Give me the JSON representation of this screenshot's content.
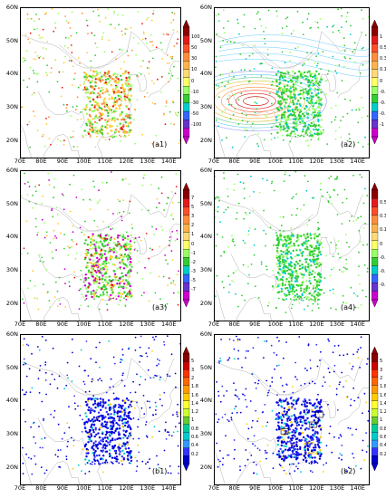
{
  "panels": [
    {
      "id": "a1",
      "label": "(a1)",
      "colorbar": {
        "labels": [
          "100",
          "50",
          "30",
          "10",
          "0",
          "-10",
          "-30",
          "-50",
          "-100"
        ],
        "colors": [
          "#8b0000",
          "#e31a1c",
          "#fc4e2a",
          "#fd8d3c",
          "#feb24c",
          "#fed976",
          "#ffff66",
          "#99ff66",
          "#33cc33",
          "#00cccc",
          "#3366ff",
          "#6633cc",
          "#cc00cc"
        ]
      },
      "points": [
        [
          "#e31a1c",
          0.5
        ],
        [
          "#fd8d3c",
          0.9
        ],
        [
          "#ffcc33",
          1.4
        ],
        [
          "#99ff66",
          1.3
        ],
        [
          "#33cc33",
          0.8
        ]
      ],
      "contours": false
    },
    {
      "id": "a2",
      "label": "(a2)",
      "colorbar": {
        "labels": [
          "1",
          "0.5",
          "0.3",
          "0.1",
          "0",
          "-0.1",
          "-0.3",
          "-0.5",
          "-1"
        ],
        "colors": [
          "#8b0000",
          "#e31a1c",
          "#fc4e2a",
          "#fd8d3c",
          "#feb24c",
          "#fed976",
          "#ffff66",
          "#99ff66",
          "#33cc33",
          "#00cccc",
          "#3366ff",
          "#6633cc",
          "#cc00cc"
        ]
      },
      "points": [
        [
          "#33cc33",
          2.0
        ],
        [
          "#99ff66",
          1.0
        ],
        [
          "#00cccc",
          0.6
        ]
      ],
      "contours": true
    },
    {
      "id": "a3",
      "label": "(a3)",
      "colorbar": {
        "labels": [
          "7",
          "5",
          "3",
          "2",
          "1",
          "0",
          "-1",
          "-2",
          "-3",
          "-5",
          "-7"
        ],
        "colors": [
          "#8b0000",
          "#e31a1c",
          "#fc4e2a",
          "#fd8d3c",
          "#feb24c",
          "#fed976",
          "#ffff66",
          "#99ff66",
          "#33cc33",
          "#00cccc",
          "#3366ff",
          "#6633cc",
          "#cc00cc"
        ]
      },
      "points": [
        [
          "#cc00cc",
          0.8
        ],
        [
          "#33cc33",
          1.5
        ],
        [
          "#99ff66",
          1.0
        ],
        [
          "#ffcc33",
          0.6
        ],
        [
          "#e31a1c",
          0.3
        ]
      ],
      "contours": false
    },
    {
      "id": "a4",
      "label": "(a4)",
      "colorbar": {
        "labels": [
          "0.5",
          "0.3",
          "0.1",
          "0",
          "-0.1",
          "-0.3",
          "-0.5"
        ],
        "colors": [
          "#8b0000",
          "#e31a1c",
          "#fc4e2a",
          "#fd8d3c",
          "#feb24c",
          "#fed976",
          "#ffff66",
          "#99ff66",
          "#33cc33",
          "#00cccc",
          "#3366ff",
          "#6633cc",
          "#cc00cc"
        ]
      },
      "points": [
        [
          "#33cc33",
          2.0
        ],
        [
          "#99ff66",
          0.7
        ],
        [
          "#00cccc",
          0.5
        ]
      ],
      "contours": false
    },
    {
      "id": "b1",
      "label": "(b1)",
      "colorbar": {
        "labels": [
          "5",
          "3",
          "2",
          "1.8",
          "1.6",
          "1.4",
          "1.2",
          "1",
          "0.8",
          "0.6",
          "0.4",
          "0.2"
        ],
        "colors": [
          "#8b0000",
          "#cc0000",
          "#ff3300",
          "#ff6600",
          "#ff9900",
          "#ffcc00",
          "#ffff33",
          "#ccff33",
          "#66cc33",
          "#00cc99",
          "#00cccc",
          "#3399ff",
          "#3333ff",
          "#0000cc"
        ]
      },
      "points": [
        [
          "#0000dd",
          2.6
        ],
        [
          "#3333ff",
          0.8
        ],
        [
          "#00cccc",
          0.3
        ],
        [
          "#ffcc00",
          0.2
        ]
      ],
      "contours": false
    },
    {
      "id": "b2",
      "label": "(b2)",
      "colorbar": {
        "labels": [
          "5",
          "3",
          "2",
          "1.8",
          "1.6",
          "1.4",
          "1.2",
          "1",
          "0.8",
          "0.6",
          "0.4",
          "0.2"
        ],
        "colors": [
          "#8b0000",
          "#cc0000",
          "#ff3300",
          "#ff6600",
          "#ff9900",
          "#ffcc00",
          "#ffff33",
          "#ccff33",
          "#66cc33",
          "#00cc99",
          "#00cccc",
          "#3399ff",
          "#3333ff",
          "#0000cc"
        ]
      },
      "points": [
        [
          "#0000dd",
          2.6
        ],
        [
          "#3333ff",
          0.8
        ],
        [
          "#00cccc",
          0.3
        ],
        [
          "#ffcc00",
          0.2
        ]
      ],
      "contours": false
    }
  ],
  "axes": {
    "xticks": [
      "70E",
      "80E",
      "90E",
      "100E",
      "110E",
      "120E",
      "130E",
      "140E"
    ],
    "yticks": [
      "60N",
      "50N",
      "40N",
      "30N",
      "20N"
    ]
  }
}
